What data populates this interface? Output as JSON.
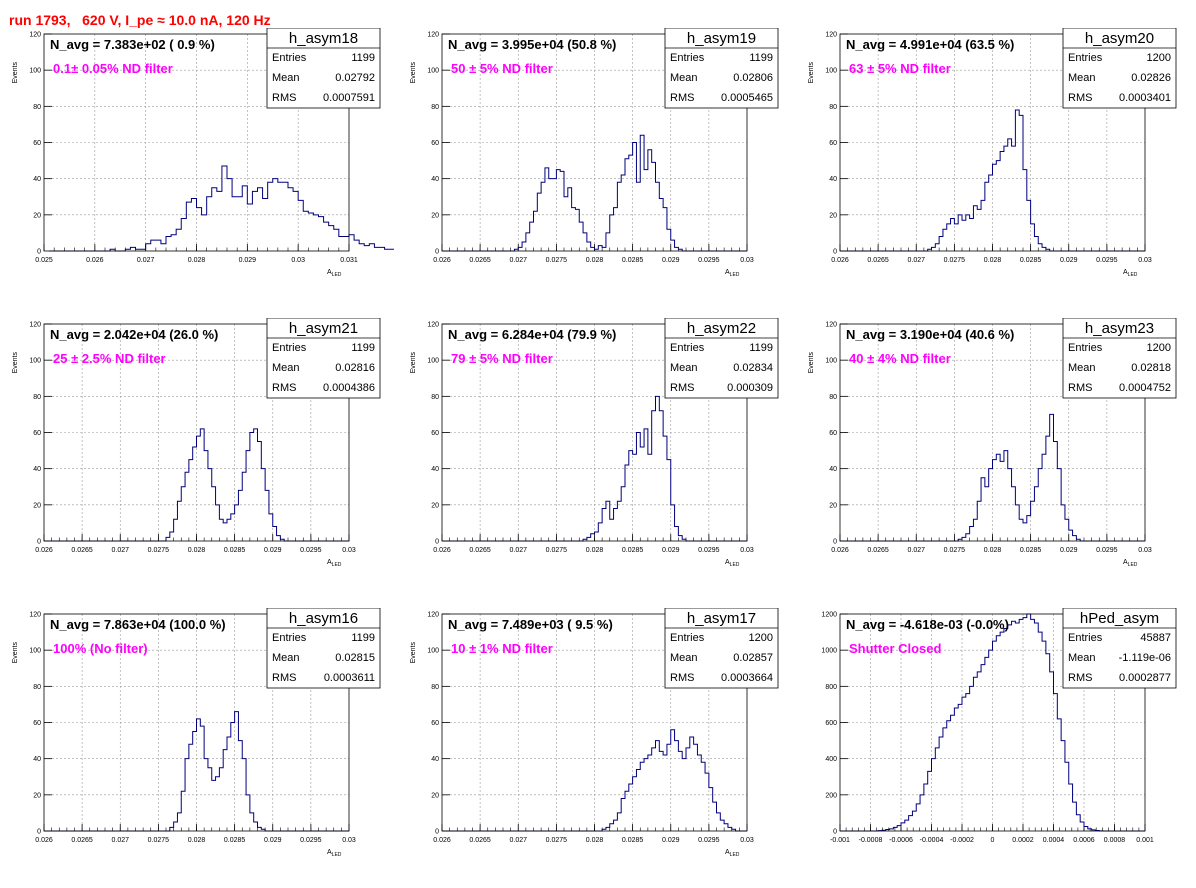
{
  "page": {
    "title": "run 1793,   620 V, I_pe ≈ 10.0 nA, 120 Hz",
    "title_color": "#ff0000"
  },
  "colors": {
    "hist": "#00007f",
    "filter_text": "#ff00ff",
    "frame": "#000000",
    "grid": "#9a9a9a"
  },
  "chart_data": [
    {
      "type": "bar",
      "title": "h_asym18",
      "xlabel": "A_LED",
      "ylabel": "Events",
      "nav": "N_avg = 7.383e+02 ( 0.9 %)",
      "filter": "0.1± 0.05% ND filter",
      "stats": {
        "entries": "1199",
        "mean": "0.02792",
        "rms": "0.0007591"
      },
      "xlim": [
        0.025,
        0.031
      ],
      "ylim": [
        0,
        120
      ],
      "xticks": [
        "0.025",
        "0.026",
        "0.027",
        "0.028",
        "0.029",
        "0.03",
        "0.031"
      ],
      "yticks": [
        "20",
        "40",
        "60",
        "80",
        "100",
        "120"
      ],
      "bins": {
        "start": 0.0251,
        "width": 0.0001,
        "counts": [
          0,
          0,
          0,
          0,
          0,
          0,
          0,
          0,
          0,
          0,
          0,
          0,
          1,
          0,
          0,
          1,
          2,
          1,
          1,
          4,
          6,
          6,
          4,
          8,
          9,
          12,
          18,
          27,
          29,
          24,
          20,
          30,
          35,
          33,
          47,
          40,
          30,
          30,
          36,
          26,
          33,
          35,
          29,
          38,
          40,
          38,
          38,
          35,
          33,
          28,
          22,
          21,
          20,
          19,
          16,
          14,
          12,
          8,
          8,
          9,
          6,
          4,
          3,
          4,
          2,
          2,
          1,
          1,
          1,
          0,
          0,
          0,
          0,
          0,
          0,
          0,
          0,
          0,
          0,
          0,
          0,
          0,
          0,
          0,
          0,
          0,
          0,
          0,
          0,
          0
        ]
      }
    },
    {
      "type": "bar",
      "title": "h_asym19",
      "xlabel": "A_LED",
      "ylabel": "Events",
      "nav": "N_avg = 3.995e+04 (50.8 %)",
      "filter": "50 ± 5% ND filter",
      "stats": {
        "entries": "1199",
        "mean": "0.02806",
        "rms": "0.0005465"
      },
      "xlim": [
        0.026,
        0.03
      ],
      "ylim": [
        0,
        120
      ],
      "xticks": [
        "0.026",
        "0.0265",
        "0.027",
        "0.0275",
        "0.028",
        "0.0285",
        "0.029",
        "0.0295",
        "0.03"
      ],
      "yticks": [
        "20",
        "40",
        "60",
        "80",
        "100",
        "120"
      ],
      "bins": {
        "start": 0.026,
        "width": 5e-05,
        "counts": [
          0,
          0,
          0,
          0,
          0,
          0,
          0,
          0,
          0,
          0,
          0,
          0,
          0,
          0,
          0,
          0,
          0,
          0,
          0,
          1,
          2,
          5,
          10,
          16,
          22,
          32,
          38,
          46,
          40,
          40,
          45,
          44,
          30,
          35,
          24,
          23,
          16,
          10,
          5,
          2,
          1,
          3,
          2,
          10,
          20,
          24,
          38,
          42,
          51,
          53,
          60,
          38,
          64,
          45,
          56,
          49,
          38,
          29,
          24,
          12,
          6,
          2,
          1,
          0,
          0,
          0,
          0,
          0,
          0,
          0,
          0,
          0,
          0,
          0,
          0,
          0,
          0,
          0,
          0,
          0
        ]
      }
    },
    {
      "type": "bar",
      "title": "h_asym20",
      "xlabel": "A_LED",
      "ylabel": "Events",
      "nav": "N_avg = 4.991e+04 (63.5 %)",
      "filter": "63 ± 5% ND filter",
      "stats": {
        "entries": "1200",
        "mean": "0.02826",
        "rms": "0.0003401"
      },
      "xlim": [
        0.026,
        0.03
      ],
      "ylim": [
        0,
        120
      ],
      "xticks": [
        "0.026",
        "0.0265",
        "0.027",
        "0.0275",
        "0.028",
        "0.0285",
        "0.029",
        "0.0295",
        "0.03"
      ],
      "yticks": [
        "20",
        "40",
        "60",
        "80",
        "100",
        "120"
      ],
      "bins": {
        "start": 0.026,
        "width": 5e-05,
        "counts": [
          0,
          0,
          0,
          0,
          0,
          0,
          0,
          0,
          0,
          0,
          0,
          0,
          0,
          0,
          0,
          0,
          0,
          0,
          0,
          0,
          0,
          0,
          0,
          1,
          2,
          4,
          8,
          12,
          15,
          18,
          15,
          20,
          17,
          20,
          18,
          25,
          23,
          28,
          38,
          42,
          48,
          50,
          55,
          58,
          62,
          58,
          78,
          75,
          45,
          28,
          15,
          8,
          4,
          2,
          1,
          0,
          0,
          0,
          0,
          0,
          0,
          0,
          0,
          0,
          0,
          0,
          0,
          0,
          0,
          0,
          0,
          0,
          0,
          0,
          0,
          0,
          0,
          0,
          0,
          0
        ]
      }
    },
    {
      "type": "bar",
      "title": "h_asym21",
      "xlabel": "A_LED",
      "ylabel": "Events",
      "nav": "N_avg = 2.042e+04 (26.0 %)",
      "filter": "25 ± 2.5% ND filter",
      "stats": {
        "entries": "1199",
        "mean": "0.02816",
        "rms": "0.0004386"
      },
      "xlim": [
        0.026,
        0.03
      ],
      "ylim": [
        0,
        120
      ],
      "xticks": [
        "0.026",
        "0.0265",
        "0.027",
        "0.0275",
        "0.028",
        "0.0285",
        "0.029",
        "0.0295",
        "0.03"
      ],
      "yticks": [
        "20",
        "40",
        "60",
        "80",
        "100",
        "120"
      ],
      "bins": {
        "start": 0.026,
        "width": 5e-05,
        "counts": [
          0,
          0,
          0,
          0,
          0,
          0,
          0,
          0,
          0,
          0,
          0,
          0,
          0,
          0,
          0,
          0,
          0,
          0,
          0,
          0,
          0,
          0,
          0,
          0,
          0,
          0,
          0,
          0,
          0,
          0,
          0,
          0,
          2,
          5,
          12,
          22,
          30,
          38,
          45,
          52,
          58,
          62,
          50,
          40,
          30,
          20,
          12,
          10,
          12,
          15,
          20,
          28,
          38,
          50,
          60,
          62,
          55,
          40,
          28,
          15,
          8,
          3,
          1,
          0,
          0,
          0,
          0,
          0,
          0,
          0,
          0,
          0,
          0,
          0,
          0,
          0,
          0,
          0,
          0,
          0
        ]
      }
    },
    {
      "type": "bar",
      "title": "h_asym22",
      "xlabel": "A_LED",
      "ylabel": "Events",
      "nav": "N_avg = 6.284e+04 (79.9 %)",
      "filter": "79 ± 5% ND filter",
      "stats": {
        "entries": "1199",
        "mean": "0.02834",
        "rms": "0.000309"
      },
      "xlim": [
        0.026,
        0.03
      ],
      "ylim": [
        0,
        120
      ],
      "xticks": [
        "0.026",
        "0.0265",
        "0.027",
        "0.0275",
        "0.028",
        "0.0285",
        "0.029",
        "0.0295",
        "0.03"
      ],
      "yticks": [
        "20",
        "40",
        "60",
        "80",
        "100",
        "120"
      ],
      "bins": {
        "start": 0.026,
        "width": 5e-05,
        "counts": [
          0,
          0,
          0,
          0,
          0,
          0,
          0,
          0,
          0,
          0,
          0,
          0,
          0,
          0,
          0,
          0,
          0,
          0,
          0,
          0,
          0,
          0,
          0,
          0,
          0,
          0,
          0,
          0,
          0,
          0,
          0,
          0,
          0,
          0,
          0,
          0,
          0,
          1,
          2,
          4,
          5,
          10,
          18,
          22,
          12,
          18,
          22,
          30,
          42,
          50,
          48,
          60,
          52,
          62,
          48,
          72,
          80,
          72,
          58,
          45,
          20,
          8,
          3,
          1,
          0,
          0,
          0,
          0,
          0,
          0,
          0,
          0,
          0,
          0,
          0,
          0,
          0,
          0,
          0,
          0
        ]
      }
    },
    {
      "type": "bar",
      "title": "h_asym23",
      "xlabel": "A_LED",
      "ylabel": "Events",
      "nav": "N_avg = 3.190e+04 (40.6 %)",
      "filter": "40 ± 4% ND filter",
      "stats": {
        "entries": "1200",
        "mean": "0.02818",
        "rms": "0.0004752"
      },
      "xlim": [
        0.026,
        0.03
      ],
      "ylim": [
        0,
        120
      ],
      "xticks": [
        "0.026",
        "0.0265",
        "0.027",
        "0.0275",
        "0.028",
        "0.0285",
        "0.029",
        "0.0295",
        "0.03"
      ],
      "yticks": [
        "20",
        "40",
        "60",
        "80",
        "100",
        "120"
      ],
      "bins": {
        "start": 0.026,
        "width": 5e-05,
        "counts": [
          0,
          0,
          0,
          0,
          0,
          0,
          0,
          0,
          0,
          0,
          0,
          0,
          0,
          0,
          0,
          0,
          0,
          0,
          0,
          0,
          0,
          0,
          0,
          0,
          0,
          0,
          0,
          0,
          0,
          0,
          0,
          1,
          2,
          4,
          8,
          12,
          22,
          35,
          30,
          40,
          45,
          48,
          44,
          50,
          40,
          30,
          20,
          12,
          10,
          14,
          22,
          30,
          40,
          48,
          58,
          70,
          55,
          40,
          20,
          12,
          6,
          3,
          1,
          0,
          0,
          0,
          0,
          0,
          0,
          0,
          0,
          0,
          0,
          0,
          0,
          0,
          0,
          0,
          0,
          0
        ]
      }
    },
    {
      "type": "bar",
      "title": "h_asym16",
      "xlabel": "A_LED",
      "ylabel": "Events",
      "nav": "N_avg = 7.863e+04 (100.0 %)",
      "filter": "100% (No filter)",
      "stats": {
        "entries": "1199",
        "mean": "0.02815",
        "rms": "0.0003611"
      },
      "xlim": [
        0.026,
        0.03
      ],
      "ylim": [
        0,
        120
      ],
      "xticks": [
        "0.026",
        "0.0265",
        "0.027",
        "0.0275",
        "0.028",
        "0.0285",
        "0.029",
        "0.0295",
        "0.03"
      ],
      "yticks": [
        "20",
        "40",
        "60",
        "80",
        "100",
        "120"
      ],
      "bins": {
        "start": 0.026,
        "width": 5e-05,
        "counts": [
          0,
          0,
          0,
          0,
          0,
          0,
          0,
          0,
          0,
          0,
          0,
          0,
          0,
          0,
          0,
          0,
          0,
          0,
          0,
          0,
          0,
          0,
          0,
          0,
          0,
          0,
          0,
          0,
          0,
          0,
          0,
          0,
          0,
          2,
          5,
          10,
          22,
          40,
          48,
          55,
          62,
          58,
          40,
          35,
          28,
          30,
          35,
          45,
          52,
          60,
          66,
          50,
          40,
          20,
          10,
          5,
          2,
          1,
          0,
          0,
          0,
          0,
          0,
          0,
          0,
          0,
          0,
          0,
          0,
          0,
          0,
          0,
          0,
          0,
          0,
          0,
          0,
          0,
          0,
          0
        ]
      }
    },
    {
      "type": "bar",
      "title": "h_asym17",
      "xlabel": "A_LED",
      "ylabel": "Events",
      "nav": "N_avg = 7.489e+03 ( 9.5 %)",
      "filter": "10 ± 1% ND filter",
      "stats": {
        "entries": "1200",
        "mean": "0.02857",
        "rms": "0.0003664"
      },
      "xlim": [
        0.026,
        0.03
      ],
      "ylim": [
        0,
        120
      ],
      "xticks": [
        "0.026",
        "0.0265",
        "0.027",
        "0.0275",
        "0.028",
        "0.0285",
        "0.029",
        "0.0295",
        "0.03"
      ],
      "yticks": [
        "20",
        "40",
        "60",
        "80",
        "100",
        "120"
      ],
      "bins": {
        "start": 0.026,
        "width": 5e-05,
        "counts": [
          0,
          0,
          0,
          0,
          0,
          0,
          0,
          0,
          0,
          0,
          0,
          0,
          0,
          0,
          0,
          0,
          0,
          0,
          0,
          0,
          0,
          0,
          0,
          0,
          0,
          0,
          0,
          0,
          0,
          0,
          0,
          0,
          0,
          0,
          0,
          0,
          0,
          0,
          0,
          0,
          0,
          0,
          1,
          2,
          4,
          6,
          10,
          18,
          22,
          26,
          30,
          34,
          38,
          40,
          42,
          46,
          50,
          44,
          42,
          48,
          56,
          50,
          44,
          40,
          46,
          52,
          48,
          42,
          38,
          32,
          24,
          16,
          10,
          6,
          4,
          2,
          1,
          0,
          0,
          0
        ]
      }
    },
    {
      "type": "bar",
      "title": "hPed_asym",
      "xlabel": "",
      "ylabel": "",
      "nav": "N_avg = -4.618e-03 (-0.0%)",
      "filter": "Shutter Closed",
      "stats": {
        "entries": "45887",
        "mean": "-1.119e-06",
        "rms": "0.0002877"
      },
      "xlim": [
        -0.001,
        0.001
      ],
      "ylim": [
        0,
        1200
      ],
      "xticks": [
        "-0.001",
        "-0.0008",
        "-0.0006",
        "-0.0004",
        "-0.0002",
        "0",
        "0.0002",
        "0.0004",
        "0.0006",
        "0.0008",
        "0.001"
      ],
      "yticks": [
        "200",
        "400",
        "600",
        "800",
        "1000",
        "1200"
      ],
      "bins": {
        "start": -0.001,
        "width": 2.5e-05,
        "counts": [
          0,
          0,
          0,
          0,
          0,
          0,
          0,
          0,
          0,
          0,
          2,
          4,
          8,
          12,
          20,
          30,
          45,
          60,
          85,
          110,
          150,
          200,
          260,
          330,
          400,
          460,
          520,
          570,
          610,
          640,
          680,
          700,
          740,
          760,
          800,
          850,
          880,
          920,
          960,
          1000,
          1050,
          1080,
          1100,
          1120,
          1140,
          1160,
          1150,
          1170,
          1180,
          1200,
          1170,
          1150,
          1100,
          1050,
          980,
          880,
          760,
          620,
          500,
          380,
          260,
          160,
          90,
          50,
          25,
          12,
          6,
          3,
          1,
          0,
          0,
          0,
          0,
          0,
          0,
          0,
          0,
          0,
          0,
          0
        ]
      }
    }
  ]
}
